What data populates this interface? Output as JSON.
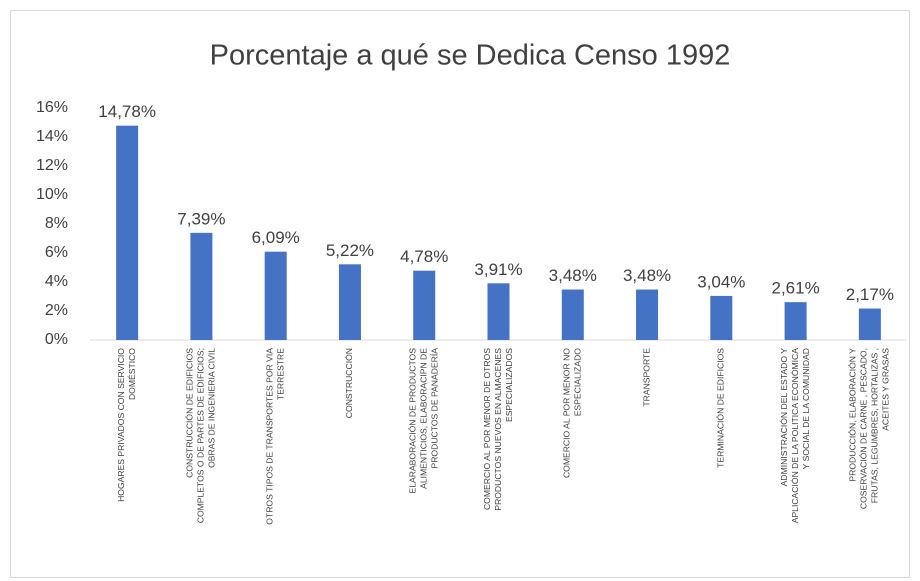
{
  "chart_data": {
    "type": "bar",
    "title": "Porcentaje a qué se Dedica Censo 1992",
    "categories": [
      [
        "HOGARES PRIVADOS CON SERVICIO",
        "DOMÉSTICO"
      ],
      [
        "CONSTRUCCIÓN DE EDIFICIOS",
        "COMPLETOS O DE PARTES DE EDIFICIOS;",
        "OBRAS DE INGENIERIA CIVIL"
      ],
      [
        "OTROS TIPOS DE TRANSPORTES POR VIA",
        "TERRESTRE"
      ],
      [
        "CONSTRUCCIÓN"
      ],
      [
        "ELARABORACIÓN DE PRODUCTOS",
        "ALIMENTICIOS, ELABORACIPN DE",
        "PRODUCTOS DE PANADERÍA"
      ],
      [
        "COMERCIO AL POR MENOR  DE OTROS",
        "PRODUCTOS NUEVOS EN ALMACENES",
        "ESPECIALIZADOS"
      ],
      [
        "COMERCIO AL POR MENOR NO",
        "ESPECIALIZADO"
      ],
      [
        "TRANSPORTE"
      ],
      [
        "TERMINACIÓN DE EDIFICIOS"
      ],
      [
        "ADMINISTRACIÓN DEL ESTADO Y",
        "APLICACIÓN DE LA POLITICA ECONÓMICA",
        "Y SOCIAL  DE LA COMUNIDAD"
      ],
      [
        "PRODUCCIÓN, ELABORACIÓN Y",
        "COSERVACIÓN DE CARNE , PESCADO,",
        "FRUTAS, LEGUMBRES, HORTALIZAS ,",
        "ACEITES Y GRASAS"
      ]
    ],
    "values": [
      14.78,
      7.39,
      6.09,
      5.22,
      4.78,
      3.91,
      3.48,
      3.48,
      3.04,
      2.61,
      2.17
    ],
    "value_labels": [
      "14,78%",
      "7,39%",
      "6,09%",
      "5,22%",
      "4,78%",
      "3,91%",
      "3,48%",
      "3,48%",
      "3,04%",
      "2,61%",
      "2,17%"
    ],
    "color": "#4472c4",
    "ylim": [
      0,
      16
    ],
    "yticks": [
      {
        "value": 0,
        "label": "0%"
      },
      {
        "value": 2,
        "label": "2%"
      },
      {
        "value": 4,
        "label": "4%"
      },
      {
        "value": 6,
        "label": "6%"
      },
      {
        "value": 8,
        "label": "8%"
      },
      {
        "value": 10,
        "label": "10%"
      },
      {
        "value": 12,
        "label": "12%"
      },
      {
        "value": 14,
        "label": "14%"
      },
      {
        "value": 16,
        "label": "16%"
      }
    ]
  }
}
